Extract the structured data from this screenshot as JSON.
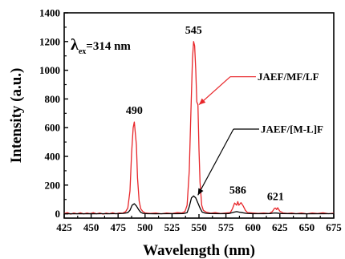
{
  "chart_data": {
    "type": "line",
    "xlabel": "Wavelength (nm)",
    "ylabel": "Intensity (a.u.)",
    "xlim": [
      425,
      675
    ],
    "ylim": [
      -30,
      1400
    ],
    "x_ticks": [
      "425",
      "450",
      "475",
      "500",
      "525",
      "550",
      "575",
      "600",
      "625",
      "650",
      "675"
    ],
    "y_ticks": [
      "0",
      "200",
      "400",
      "600",
      "800",
      "1000",
      "1200",
      "1400"
    ],
    "excitation": {
      "symbol": "λ",
      "subscript": "ex",
      "text": "=314 nm"
    },
    "peak_labels": [
      {
        "text": "490",
        "x": 490,
        "y": 640
      },
      {
        "text": "545",
        "x": 545,
        "y": 1200
      },
      {
        "text": "586",
        "x": 586,
        "y": 85
      },
      {
        "text": "621",
        "x": 621,
        "y": 40
      }
    ],
    "series": [
      {
        "name": "JAEF/MF/LF",
        "color": "#e8262a",
        "points": [
          [
            425,
            2
          ],
          [
            428,
            8
          ],
          [
            431,
            -2
          ],
          [
            434,
            6
          ],
          [
            437,
            0
          ],
          [
            440,
            7
          ],
          [
            443,
            -1
          ],
          [
            446,
            5
          ],
          [
            449,
            1
          ],
          [
            452,
            8
          ],
          [
            455,
            0
          ],
          [
            458,
            6
          ],
          [
            461,
            -2
          ],
          [
            464,
            5
          ],
          [
            467,
            1
          ],
          [
            470,
            7
          ],
          [
            473,
            0
          ],
          [
            476,
            6
          ],
          [
            479,
            4
          ],
          [
            482,
            15
          ],
          [
            484,
            40
          ],
          [
            486,
            160
          ],
          [
            487.5,
            420
          ],
          [
            489,
            600
          ],
          [
            490,
            640
          ],
          [
            491,
            560
          ],
          [
            492,
            480
          ],
          [
            493,
            250
          ],
          [
            494.5,
            90
          ],
          [
            496,
            35
          ],
          [
            498,
            15
          ],
          [
            500,
            6
          ],
          [
            505,
            3
          ],
          [
            510,
            6
          ],
          [
            515,
            0
          ],
          [
            520,
            5
          ],
          [
            525,
            2
          ],
          [
            530,
            8
          ],
          [
            534,
            5
          ],
          [
            537,
            15
          ],
          [
            539,
            60
          ],
          [
            541,
            300
          ],
          [
            542.5,
            700
          ],
          [
            544,
            1080
          ],
          [
            545,
            1200
          ],
          [
            546,
            1170
          ],
          [
            547,
            1000
          ],
          [
            548,
            780
          ],
          [
            549,
            760
          ],
          [
            550,
            450
          ],
          [
            551,
            220
          ],
          [
            552.5,
            60
          ],
          [
            554,
            25
          ],
          [
            557,
            10
          ],
          [
            561,
            4
          ],
          [
            565,
            8
          ],
          [
            570,
            2
          ],
          [
            575,
            6
          ],
          [
            579,
            8
          ],
          [
            581,
            35
          ],
          [
            583,
            75
          ],
          [
            585,
            60
          ],
          [
            586,
            85
          ],
          [
            587,
            60
          ],
          [
            589,
            78
          ],
          [
            591,
            55
          ],
          [
            593,
            25
          ],
          [
            595,
            8
          ],
          [
            600,
            5
          ],
          [
            605,
            3
          ],
          [
            610,
            6
          ],
          [
            615,
            2
          ],
          [
            618,
            15
          ],
          [
            620,
            38
          ],
          [
            621,
            40
          ],
          [
            622,
            30
          ],
          [
            623,
            42
          ],
          [
            625,
            18
          ],
          [
            628,
            6
          ],
          [
            632,
            3
          ],
          [
            636,
            6
          ],
          [
            640,
            1
          ],
          [
            645,
            6
          ],
          [
            650,
            0
          ],
          [
            655,
            5
          ],
          [
            660,
            2
          ],
          [
            665,
            7
          ],
          [
            670,
            1
          ],
          [
            675,
            4
          ]
        ]
      },
      {
        "name": "JAEF/[M-L]F",
        "color": "#000000",
        "points": [
          [
            425,
            0
          ],
          [
            430,
            1
          ],
          [
            435,
            0
          ],
          [
            440,
            1
          ],
          [
            445,
            0
          ],
          [
            450,
            1
          ],
          [
            455,
            0
          ],
          [
            460,
            1
          ],
          [
            465,
            0
          ],
          [
            470,
            1
          ],
          [
            475,
            1
          ],
          [
            480,
            3
          ],
          [
            484,
            8
          ],
          [
            486,
            25
          ],
          [
            488,
            60
          ],
          [
            490,
            70
          ],
          [
            492,
            55
          ],
          [
            494,
            30
          ],
          [
            496,
            10
          ],
          [
            498,
            3
          ],
          [
            502,
            1
          ],
          [
            510,
            0
          ],
          [
            520,
            1
          ],
          [
            530,
            1
          ],
          [
            536,
            2
          ],
          [
            539,
            8
          ],
          [
            541,
            50
          ],
          [
            543,
            110
          ],
          [
            545,
            125
          ],
          [
            547,
            110
          ],
          [
            549,
            75
          ],
          [
            551,
            40
          ],
          [
            553,
            12
          ],
          [
            556,
            4
          ],
          [
            560,
            2
          ],
          [
            570,
            1
          ],
          [
            578,
            2
          ],
          [
            582,
            10
          ],
          [
            585,
            15
          ],
          [
            587,
            12
          ],
          [
            590,
            8
          ],
          [
            594,
            3
          ],
          [
            600,
            1
          ],
          [
            610,
            1
          ],
          [
            616,
            2
          ],
          [
            620,
            6
          ],
          [
            622,
            5
          ],
          [
            626,
            2
          ],
          [
            635,
            1
          ],
          [
            650,
            0
          ],
          [
            675,
            1
          ]
        ]
      }
    ],
    "legend": [
      {
        "text": "JAEF/MF/LF",
        "series": 0,
        "color": "#e8262a",
        "arrow_from": [
          579,
          955
        ],
        "arrow_to": [
          550,
          760
        ]
      },
      {
        "text": "JAEF/[M-L]F",
        "series": 1,
        "color": "#000000",
        "arrow_from": [
          582,
          590
        ],
        "arrow_to": [
          549,
          130
        ]
      }
    ]
  }
}
